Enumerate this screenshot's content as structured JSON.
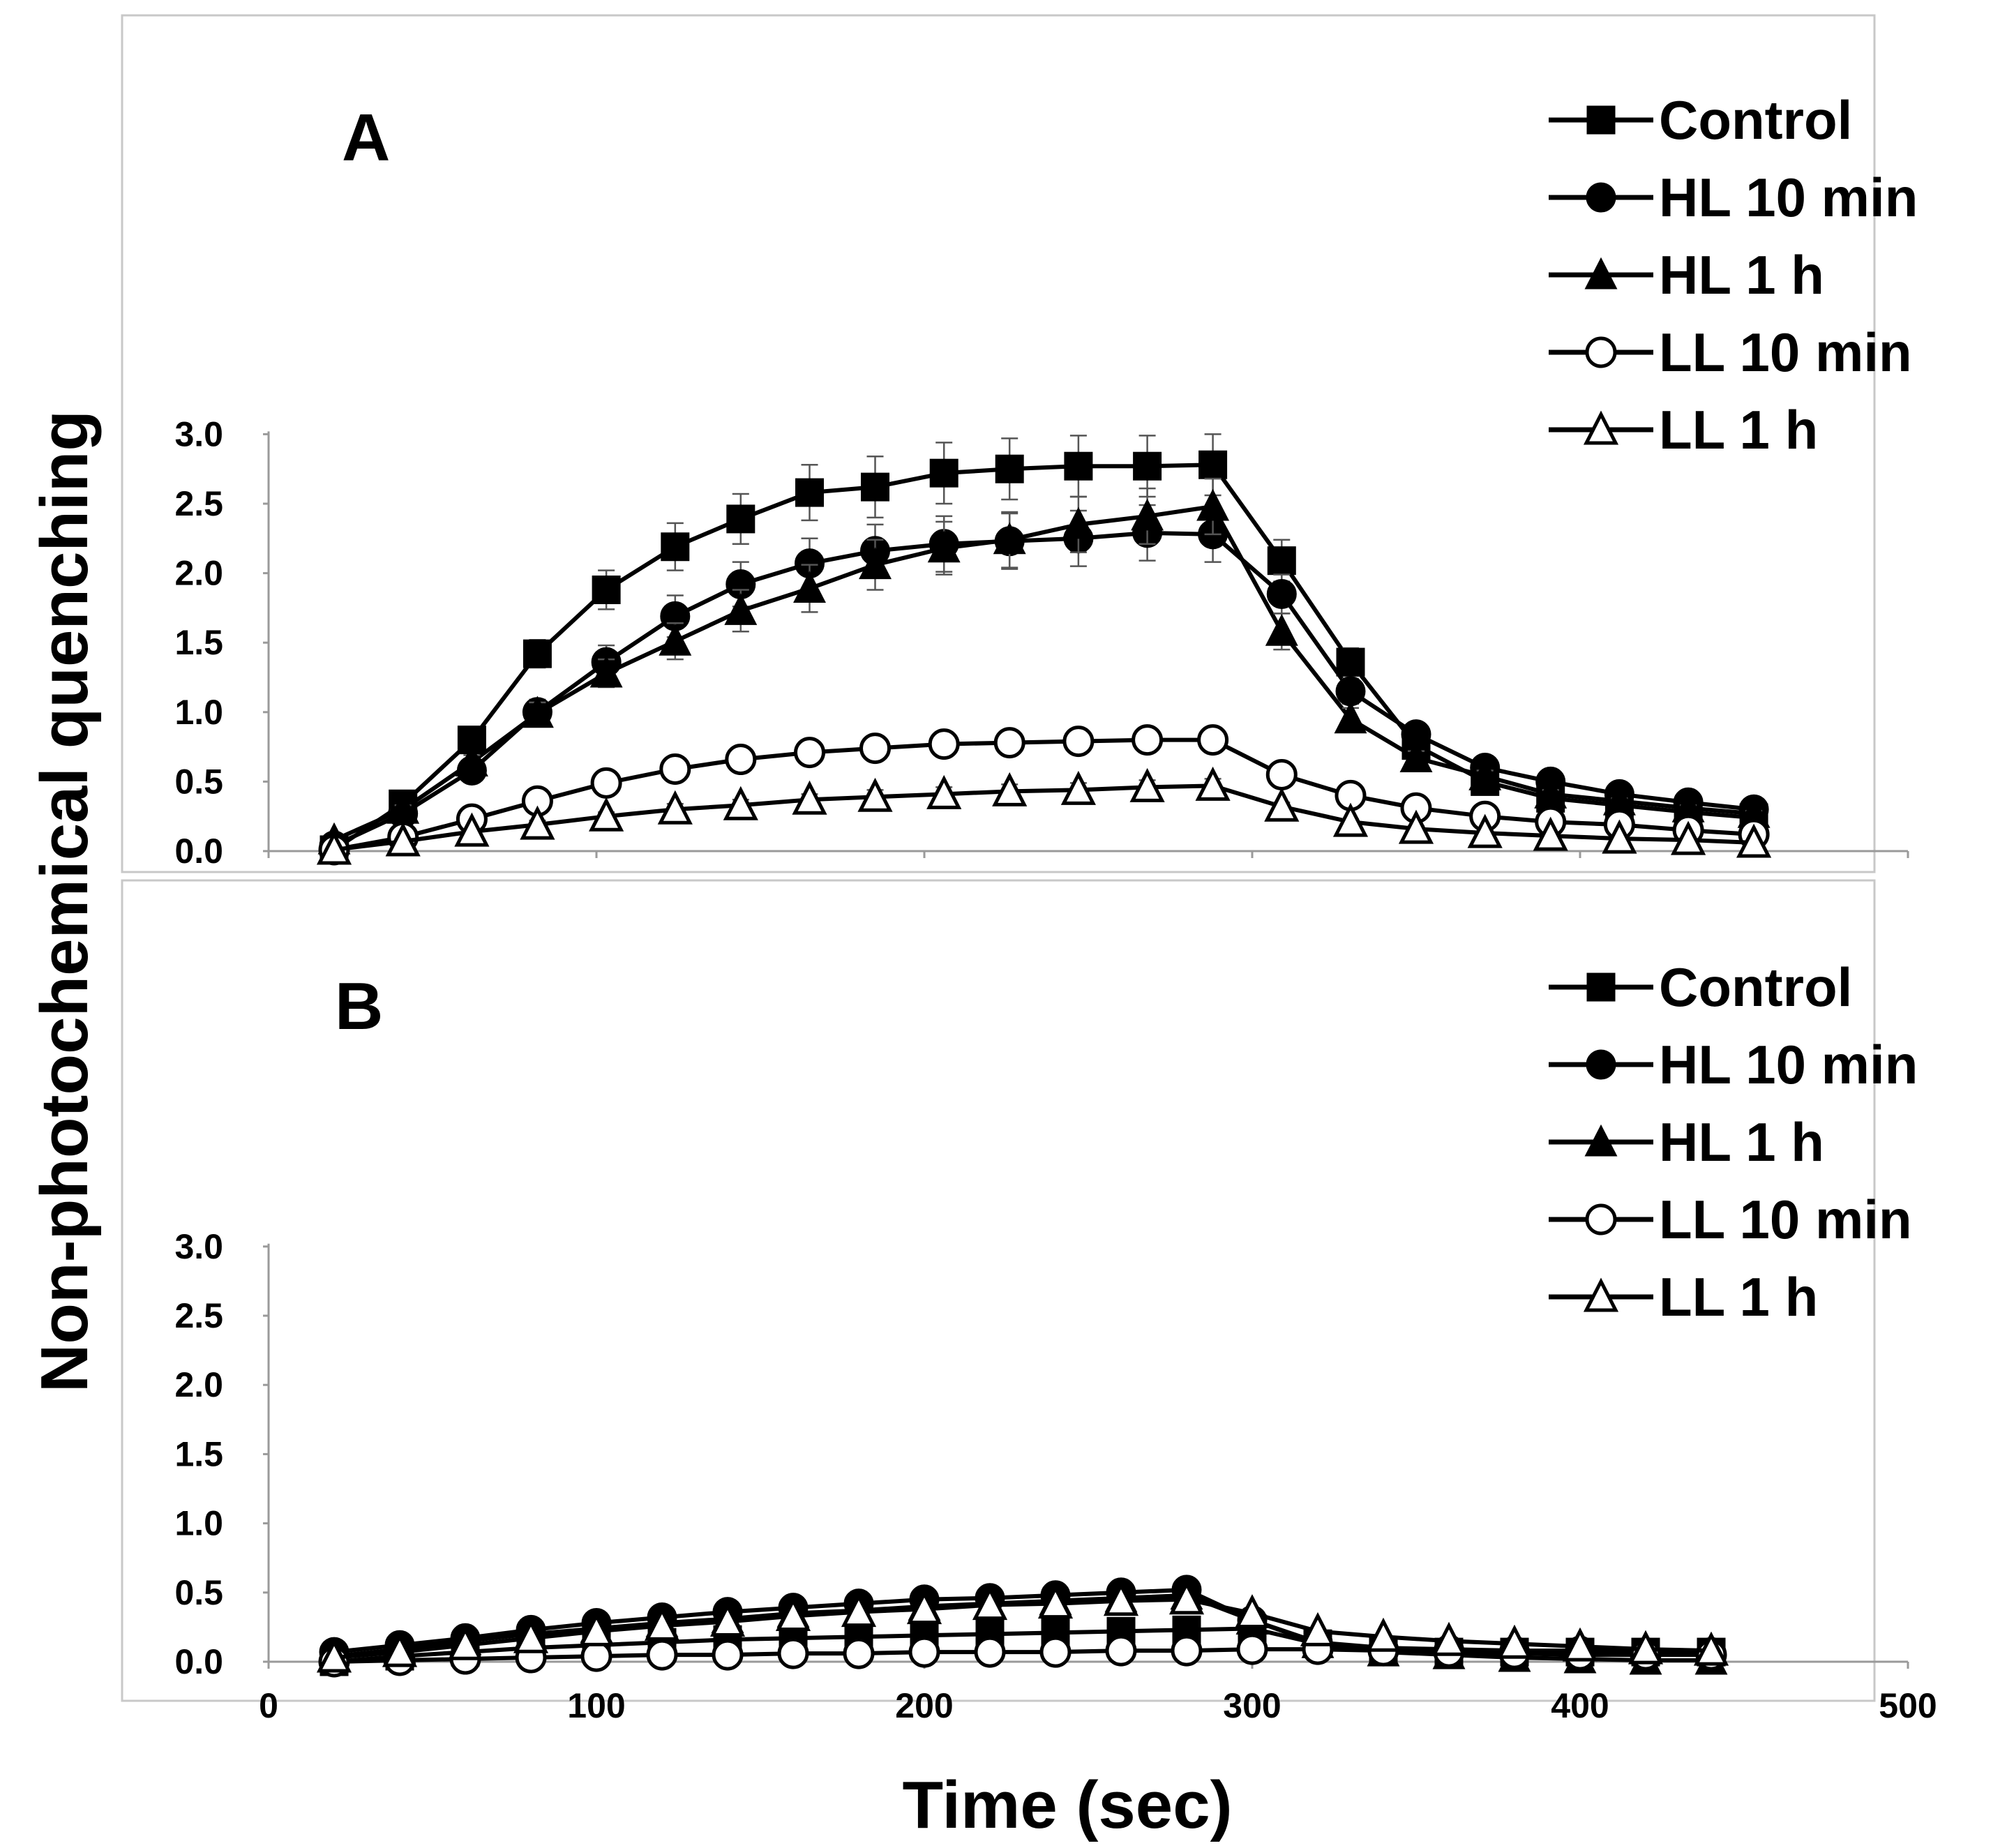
{
  "figure": {
    "ylabel": "Non-photochemical quenching",
    "xlabel": "Time (sec)",
    "legend_position": "top-right"
  },
  "chart_data": [
    {
      "type": "line",
      "panel": "A",
      "xlim": [
        0,
        500
      ],
      "ylim": [
        0.0,
        3.0
      ],
      "yticks": [
        "0.0",
        "0.5",
        "1.0",
        "1.5",
        "2.0",
        "2.5",
        "3.0"
      ],
      "xticks": [],
      "grid": false,
      "error_bars": true,
      "series": [
        {
          "name": "Control",
          "marker": "square-filled",
          "x": [
            20,
            41,
            62,
            82,
            103,
            124,
            144,
            165,
            185,
            206,
            226,
            247,
            268,
            288,
            309,
            330,
            350,
            371,
            391,
            412,
            433,
            453
          ],
          "y": [
            0.01,
            0.34,
            0.8,
            1.42,
            1.88,
            2.19,
            2.39,
            2.58,
            2.62,
            2.72,
            2.75,
            2.77,
            2.77,
            2.78,
            2.09,
            1.36,
            0.76,
            0.5,
            0.38,
            0.33,
            0.28,
            0.24
          ],
          "err": [
            0.01,
            0.04,
            0.06,
            0.1,
            0.14,
            0.17,
            0.18,
            0.2,
            0.22,
            0.22,
            0.22,
            0.22,
            0.22,
            0.22,
            0.15,
            0.1,
            0.05,
            0.03,
            0.02,
            0.02,
            0.02,
            0.02
          ]
        },
        {
          "name": "HL 10 min",
          "marker": "circle-filled",
          "x": [
            20,
            41,
            62,
            82,
            103,
            124,
            144,
            165,
            185,
            206,
            226,
            247,
            268,
            288,
            309,
            330,
            350,
            371,
            391,
            412,
            433,
            453
          ],
          "y": [
            0.04,
            0.27,
            0.58,
            1.0,
            1.36,
            1.69,
            1.92,
            2.07,
            2.16,
            2.21,
            2.23,
            2.25,
            2.29,
            2.28,
            1.85,
            1.15,
            0.84,
            0.6,
            0.5,
            0.41,
            0.35,
            0.3
          ],
          "err": [
            0.01,
            0.03,
            0.05,
            0.09,
            0.12,
            0.15,
            0.16,
            0.18,
            0.19,
            0.2,
            0.2,
            0.2,
            0.2,
            0.2,
            0.14,
            0.09,
            0.06,
            0.04,
            0.03,
            0.02,
            0.02,
            0.02
          ]
        },
        {
          "name": "HL 1 h",
          "marker": "triangle-filled",
          "x": [
            20,
            41,
            62,
            82,
            103,
            124,
            144,
            165,
            185,
            206,
            226,
            247,
            268,
            288,
            309,
            330,
            350,
            371,
            391,
            412,
            433,
            453
          ],
          "y": [
            0.08,
            0.3,
            0.64,
            0.99,
            1.28,
            1.51,
            1.73,
            1.89,
            2.06,
            2.18,
            2.24,
            2.35,
            2.41,
            2.48,
            1.58,
            0.95,
            0.67,
            0.54,
            0.41,
            0.36,
            0.31,
            0.27
          ],
          "err": [
            0.01,
            0.03,
            0.05,
            0.08,
            0.1,
            0.13,
            0.15,
            0.17,
            0.18,
            0.19,
            0.2,
            0.2,
            0.2,
            0.2,
            0.13,
            0.08,
            0.05,
            0.04,
            0.03,
            0.02,
            0.02,
            0.02
          ]
        },
        {
          "name": "LL 10 min",
          "marker": "circle-open",
          "x": [
            20,
            41,
            62,
            82,
            103,
            124,
            144,
            165,
            185,
            206,
            226,
            247,
            268,
            288,
            309,
            330,
            350,
            371,
            391,
            412,
            433,
            453
          ],
          "y": [
            0.01,
            0.1,
            0.23,
            0.36,
            0.49,
            0.59,
            0.66,
            0.71,
            0.74,
            0.77,
            0.78,
            0.79,
            0.8,
            0.8,
            0.55,
            0.4,
            0.31,
            0.25,
            0.21,
            0.19,
            0.15,
            0.12
          ],
          "err": [
            0.01,
            0.02,
            0.03,
            0.04,
            0.05,
            0.06,
            0.07,
            0.08,
            0.08,
            0.09,
            0.09,
            0.09,
            0.09,
            0.09,
            0.05,
            0.03,
            0.02,
            0.02,
            0.02,
            0.01,
            0.01,
            0.01
          ]
        },
        {
          "name": "LL 1 h",
          "marker": "triangle-open",
          "x": [
            20,
            41,
            62,
            82,
            103,
            124,
            144,
            165,
            185,
            206,
            226,
            247,
            268,
            288,
            309,
            330,
            350,
            371,
            391,
            412,
            433,
            453
          ],
          "y": [
            0.01,
            0.07,
            0.14,
            0.19,
            0.25,
            0.3,
            0.33,
            0.37,
            0.39,
            0.41,
            0.43,
            0.44,
            0.46,
            0.47,
            0.32,
            0.21,
            0.16,
            0.13,
            0.11,
            0.09,
            0.08,
            0.06
          ],
          "err": [
            0.01,
            0.02,
            0.02,
            0.03,
            0.03,
            0.04,
            0.04,
            0.04,
            0.05,
            0.05,
            0.05,
            0.05,
            0.05,
            0.05,
            0.03,
            0.02,
            0.02,
            0.01,
            0.01,
            0.01,
            0.01,
            0.01
          ]
        }
      ]
    },
    {
      "type": "line",
      "panel": "B",
      "xlim": [
        0,
        500
      ],
      "ylim": [
        0.0,
        3.0
      ],
      "yticks": [
        "0.0",
        "0.5",
        "1.0",
        "1.5",
        "2.0",
        "2.5",
        "3.0"
      ],
      "xticks": [
        "0",
        "100",
        "200",
        "300",
        "400",
        "500"
      ],
      "grid": false,
      "error_bars": false,
      "series": [
        {
          "name": "Control",
          "marker": "square-filled",
          "x": [
            20,
            40,
            60,
            80,
            100,
            120,
            140,
            160,
            180,
            200,
            220,
            240,
            260,
            280,
            300,
            320,
            340,
            360,
            380,
            400,
            420,
            440
          ],
          "y": [
            0.0,
            0.04,
            0.07,
            0.1,
            0.12,
            0.14,
            0.16,
            0.17,
            0.18,
            0.19,
            0.2,
            0.21,
            0.22,
            0.23,
            0.24,
            0.13,
            0.08,
            0.07,
            0.07,
            0.07,
            0.07,
            0.07
          ]
        },
        {
          "name": "HL 10 min",
          "marker": "circle-filled",
          "x": [
            20,
            40,
            60,
            80,
            100,
            120,
            140,
            160,
            180,
            200,
            220,
            240,
            260,
            280,
            300,
            320,
            340,
            360,
            380,
            400,
            420,
            440
          ],
          "y": [
            0.07,
            0.12,
            0.17,
            0.23,
            0.28,
            0.32,
            0.36,
            0.39,
            0.42,
            0.45,
            0.46,
            0.48,
            0.5,
            0.52,
            0.3,
            0.14,
            0.1,
            0.09,
            0.08,
            0.08,
            0.07,
            0.07
          ]
        },
        {
          "name": "HL 1 h",
          "marker": "triangle-filled",
          "x": [
            20,
            40,
            60,
            80,
            100,
            120,
            140,
            160,
            180,
            200,
            220,
            240,
            260,
            280,
            300,
            320,
            340,
            360,
            380,
            400,
            420,
            440
          ],
          "y": [
            0.04,
            0.09,
            0.15,
            0.2,
            0.24,
            0.28,
            0.31,
            0.35,
            0.37,
            0.4,
            0.42,
            0.44,
            0.46,
            0.48,
            0.3,
            0.13,
            0.07,
            0.05,
            0.03,
            0.02,
            0.01,
            0.01
          ]
        },
        {
          "name": "LL 10 min",
          "marker": "circle-open",
          "x": [
            20,
            40,
            60,
            80,
            100,
            120,
            140,
            160,
            180,
            200,
            220,
            240,
            260,
            280,
            300,
            320,
            340,
            360,
            380,
            400,
            420,
            440
          ],
          "y": [
            0.0,
            0.01,
            0.02,
            0.03,
            0.04,
            0.05,
            0.05,
            0.06,
            0.06,
            0.07,
            0.07,
            0.07,
            0.08,
            0.08,
            0.09,
            0.09,
            0.08,
            0.07,
            0.06,
            0.05,
            0.05,
            0.05
          ]
        },
        {
          "name": "LL 1 h",
          "marker": "triangle-open",
          "x": [
            20,
            40,
            60,
            80,
            100,
            120,
            140,
            160,
            180,
            200,
            220,
            240,
            260,
            280,
            300,
            320,
            340,
            360,
            380,
            400,
            420,
            440
          ],
          "y": [
            0.03,
            0.07,
            0.12,
            0.17,
            0.22,
            0.26,
            0.29,
            0.33,
            0.36,
            0.38,
            0.41,
            0.42,
            0.44,
            0.45,
            0.35,
            0.22,
            0.18,
            0.15,
            0.13,
            0.11,
            0.09,
            0.08
          ]
        }
      ]
    }
  ]
}
